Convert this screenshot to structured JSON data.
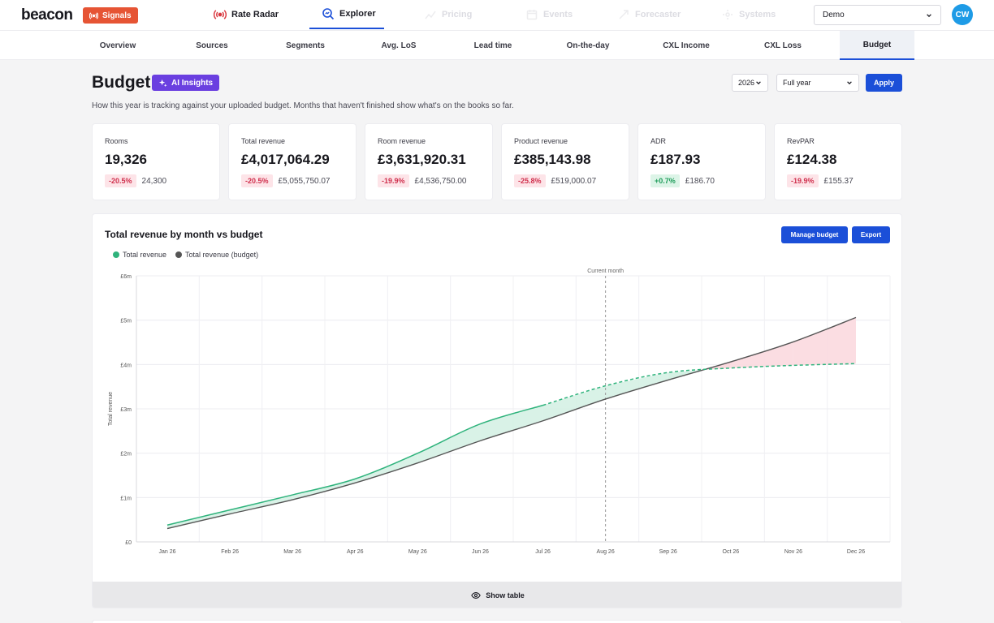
{
  "app": {
    "logo": "beacon",
    "signals_label": "Signals",
    "nav": [
      {
        "label": "Rate Radar",
        "icon": "broadcast-icon"
      },
      {
        "label": "Explorer",
        "icon": "search-chart-icon"
      },
      {
        "label": "Pricing",
        "icon": "pricing-icon"
      },
      {
        "label": "Events",
        "icon": "calendar-icon"
      },
      {
        "label": "Forecaster",
        "icon": "forecast-icon"
      },
      {
        "label": "Systems",
        "icon": "systems-icon"
      }
    ],
    "property_select": "Demo",
    "avatar_initials": "CW"
  },
  "subtabs": [
    "Overview",
    "Sources",
    "Segments",
    "Avg. LoS",
    "Lead time",
    "On-the-day",
    "CXL Income",
    "CXL Loss",
    "Budget"
  ],
  "active_subtab": "Budget",
  "page": {
    "title": "Budget",
    "ai_label": "AI Insights",
    "description": "How this year is tracking against your uploaded budget. Months that haven't finished show what's on the books so far.",
    "year": "2026",
    "period": "Full year",
    "apply_label": "Apply"
  },
  "kpis": [
    {
      "label": "Rooms",
      "value": "19,326",
      "delta": "-20.5%",
      "trend": "neg",
      "budget": "24,300"
    },
    {
      "label": "Total revenue",
      "value": "£4,017,064.29",
      "delta": "-20.5%",
      "trend": "neg",
      "budget": "£5,055,750.07"
    },
    {
      "label": "Room revenue",
      "value": "£3,631,920.31",
      "delta": "-19.9%",
      "trend": "neg",
      "budget": "£4,536,750.00"
    },
    {
      "label": "Product revenue",
      "value": "£385,143.98",
      "delta": "-25.8%",
      "trend": "neg",
      "budget": "£519,000.07"
    },
    {
      "label": "ADR",
      "value": "£187.93",
      "delta": "+0.7%",
      "trend": "pos",
      "budget": "£186.70"
    },
    {
      "label": "RevPAR",
      "value": "£124.38",
      "delta": "-19.9%",
      "trend": "neg",
      "budget": "£155.37"
    }
  ],
  "chart_card": {
    "manage_label": "Manage budget",
    "export_label": "Export",
    "show_table_label": "Show table"
  },
  "colors": {
    "actual": "#2fb37c",
    "budget": "#555555",
    "above_fill": "#d5f1e4",
    "below_fill": "#fbd9df",
    "accent": "#1b4fd8"
  },
  "chart_data": {
    "type": "line",
    "title": "Total revenue by month vs budget",
    "ylabel": "Total revenue",
    "xlabel": "",
    "categories": [
      "Jan 26",
      "Feb 26",
      "Mar 26",
      "Apr 26",
      "May 26",
      "Jun 26",
      "Jul 26",
      "Aug 26",
      "Sep 26",
      "Oct 26",
      "Nov 26",
      "Dec 26"
    ],
    "ylim": [
      0,
      6000000
    ],
    "yticks": [
      "£0",
      "£1m",
      "£2m",
      "£3m",
      "£4m",
      "£5m",
      "£6m"
    ],
    "grid": true,
    "legend_position": "top-left",
    "marker_label": "Current month",
    "marker_category": "Aug 26",
    "actual_completed_through": "Jul 26",
    "series": [
      {
        "name": "Total revenue",
        "values": [
          380000,
          720000,
          1060000,
          1420000,
          2000000,
          2660000,
          3080000,
          3520000,
          3820000,
          3920000,
          3980000,
          4020000
        ]
      },
      {
        "name": "Total revenue (budget)",
        "values": [
          300000,
          630000,
          950000,
          1330000,
          1780000,
          2280000,
          2730000,
          3220000,
          3650000,
          4060000,
          4510000,
          5060000
        ]
      }
    ]
  }
}
